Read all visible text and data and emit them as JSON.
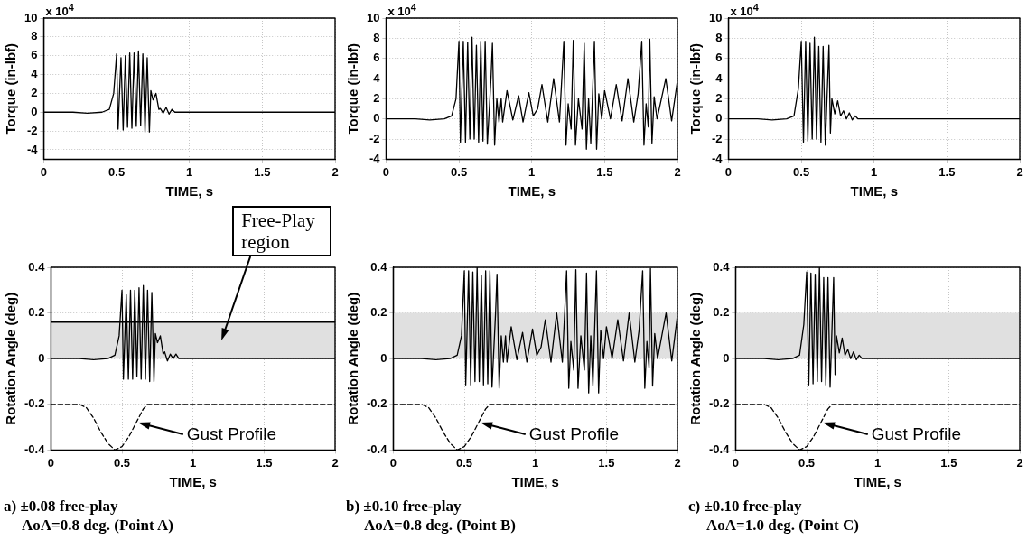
{
  "chart_data": [
    {
      "type": "line",
      "xlabel": "TIME, s",
      "ylabel": "Torque (in-lbf)",
      "xlim": [
        0,
        2
      ],
      "xticks": [
        0,
        0.5,
        1,
        1.5,
        2
      ],
      "ylim": [
        -5,
        10
      ],
      "yticks": [
        -4,
        -2,
        0,
        2,
        4,
        6,
        8,
        10
      ],
      "grid": true,
      "annotations": [
        "x 10$^{4}$"
      ],
      "series": [
        {
          "color": "#000000",
          "x": [
            0,
            0.2,
            0.3,
            0.4,
            0.45,
            0.48,
            0.5,
            0.51,
            0.53,
            0.545,
            0.56,
            0.575,
            0.59,
            0.605,
            0.62,
            0.635,
            0.65,
            0.665,
            0.68,
            0.695,
            0.71,
            0.725,
            0.735,
            0.75,
            0.77,
            0.79,
            0.8,
            0.82,
            0.84,
            0.86,
            0.88,
            0.9,
            0.95,
            1.0,
            2.0
          ],
          "values": [
            0,
            0,
            -0.1,
            0,
            0.3,
            2,
            6.2,
            -1.8,
            5.8,
            -1.9,
            6.0,
            -1.6,
            6.3,
            -1.7,
            6.3,
            -1.5,
            6.5,
            -1.4,
            6.2,
            -2.1,
            5.8,
            -2.1,
            2.3,
            1.3,
            2.0,
            0.3,
            0.4,
            -0.1,
            0.5,
            -0.2,
            0.3,
            0,
            0,
            0,
            0
          ]
        }
      ]
    },
    {
      "type": "line",
      "xlabel": "TIME, s",
      "ylabel": "Torque (in-lbf)",
      "xlim": [
        0,
        2
      ],
      "xticks": [
        0,
        0.5,
        1,
        1.5,
        2
      ],
      "ylim": [
        -4,
        10
      ],
      "yticks": [
        -4,
        -2,
        0,
        2,
        4,
        6,
        8,
        10
      ],
      "grid": true,
      "annotations": [
        "x 10$^{4}$"
      ],
      "series": [
        {
          "color": "#000000",
          "x": [
            0,
            0.2,
            0.3,
            0.4,
            0.45,
            0.48,
            0.5,
            0.51,
            0.53,
            0.545,
            0.56,
            0.575,
            0.59,
            0.605,
            0.62,
            0.635,
            0.65,
            0.665,
            0.68,
            0.695,
            0.72,
            0.73,
            0.745,
            0.76,
            0.775,
            0.79,
            0.8,
            0.83,
            0.87,
            0.91,
            0.94,
            0.98,
            1.01,
            1.04,
            1.07,
            1.11,
            1.15,
            1.19,
            1.22,
            1.235,
            1.25,
            1.27,
            1.285,
            1.3,
            1.32,
            1.345,
            1.36,
            1.375,
            1.39,
            1.405,
            1.43,
            1.445,
            1.46,
            1.48,
            1.5,
            1.54,
            1.58,
            1.62,
            1.66,
            1.7,
            1.73,
            1.755,
            1.77,
            1.785,
            1.8,
            1.81,
            1.825,
            1.84,
            1.86,
            1.92,
            1.96,
            2.0
          ],
          "values": [
            0,
            0,
            -0.1,
            0,
            0.3,
            2,
            7.7,
            -2.3,
            7.7,
            -2.3,
            7.6,
            -2.0,
            8.1,
            -2.0,
            7.3,
            -2.3,
            7.7,
            -2.2,
            7.7,
            -2.5,
            4.0,
            7.5,
            -2.6,
            2.0,
            -0.3,
            2.0,
            -0.3,
            2.8,
            -0.1,
            2.3,
            -0.3,
            2.6,
            0.3,
            1.0,
            3.4,
            -0.3,
            4.0,
            -0.3,
            7.7,
            -2.6,
            1.5,
            -1.0,
            7.8,
            -2.6,
            2.0,
            -1.0,
            7.5,
            -3.0,
            2.0,
            -2.4,
            7.7,
            -3.0,
            2.5,
            0,
            2.8,
            0,
            3.4,
            -0.2,
            4.0,
            -0.3,
            2.5,
            7.7,
            -2.6,
            1.5,
            -0.8,
            7.9,
            -2.4,
            2.2,
            0,
            4.0,
            -0.2,
            3.8
          ]
        }
      ]
    },
    {
      "type": "line",
      "xlabel": "TIME, s",
      "ylabel": "Torque (in-lbf)",
      "xlim": [
        0,
        2
      ],
      "xticks": [
        0,
        0.5,
        1,
        1.5,
        2
      ],
      "ylim": [
        -4,
        10
      ],
      "yticks": [
        -4,
        -2,
        0,
        2,
        4,
        6,
        8,
        10
      ],
      "grid": true,
      "annotations": [
        "x 10$^{4}$"
      ],
      "series": [
        {
          "color": "#000000",
          "x": [
            0,
            0.2,
            0.3,
            0.4,
            0.45,
            0.48,
            0.5,
            0.515,
            0.53,
            0.545,
            0.56,
            0.575,
            0.59,
            0.605,
            0.62,
            0.635,
            0.65,
            0.665,
            0.69,
            0.7,
            0.71,
            0.73,
            0.75,
            0.77,
            0.79,
            0.81,
            0.83,
            0.85,
            0.87,
            0.89,
            0.92,
            0.95,
            2.0
          ],
          "values": [
            0,
            0,
            -0.1,
            0,
            0.3,
            3,
            7.7,
            -2.3,
            7.7,
            -2.2,
            7.5,
            -2.0,
            8.1,
            -2.0,
            7.2,
            -2.3,
            7.2,
            -2.6,
            7.3,
            -1.4,
            2.0,
            0.5,
            1.8,
            0.3,
            0.8,
            0,
            0.6,
            -0.1,
            0.3,
            0,
            0,
            0,
            0
          ]
        }
      ]
    },
    {
      "type": "line",
      "xlabel": "TIME, s",
      "ylabel": "Rotation Angle (deg)",
      "xlim": [
        0,
        2
      ],
      "xticks": [
        0,
        0.5,
        1,
        1.5,
        2
      ],
      "ylim": [
        -0.4,
        0.4
      ],
      "yticks": [
        -0.4,
        -0.2,
        0,
        0.2,
        0.4
      ],
      "grid": true,
      "bands": [
        {
          "axis": "y",
          "from": 0,
          "to": 0.16,
          "color": "#e0e0e0",
          "label": "Free-Play region"
        }
      ],
      "ref_lines": [
        {
          "axis": "y",
          "value": 0.16
        }
      ],
      "annotations": [
        "a) ±0.08 free-play",
        "AoA=0.8 deg. (Point A)"
      ],
      "series": [
        {
          "color": "#000000",
          "x": [
            0,
            0.2,
            0.3,
            0.4,
            0.45,
            0.48,
            0.5,
            0.51,
            0.53,
            0.545,
            0.56,
            0.575,
            0.59,
            0.605,
            0.62,
            0.635,
            0.65,
            0.665,
            0.68,
            0.695,
            0.71,
            0.725,
            0.735,
            0.75,
            0.77,
            0.79,
            0.8,
            0.82,
            0.84,
            0.86,
            0.88,
            0.9,
            0.95,
            1.0,
            2.0
          ],
          "values": [
            0,
            0,
            -0.005,
            0,
            0.015,
            0.1,
            0.3,
            -0.09,
            0.28,
            -0.09,
            0.3,
            -0.09,
            0.3,
            -0.08,
            0.31,
            -0.09,
            0.32,
            -0.09,
            0.3,
            -0.1,
            0.29,
            -0.1,
            0.11,
            0.07,
            0.1,
            0.02,
            0.03,
            -0.01,
            0.02,
            0,
            0.02,
            0,
            0,
            0,
            0
          ]
        },
        {
          "name": "Gust Profile",
          "color": "#000000",
          "line_style": "dashed",
          "x": [
            0,
            0.2,
            0.25,
            0.3,
            0.35,
            0.4,
            0.45,
            0.5,
            0.55,
            0.6,
            0.65,
            0.68,
            2
          ],
          "values": [
            -0.2,
            -0.2,
            -0.215,
            -0.26,
            -0.32,
            -0.37,
            -0.4,
            -0.385,
            -0.34,
            -0.28,
            -0.22,
            -0.2,
            -0.2
          ]
        }
      ]
    },
    {
      "type": "line",
      "xlabel": "TIME, s",
      "ylabel": "Rotation Angle (deg)",
      "xlim": [
        0,
        2
      ],
      "xticks": [
        0,
        0.5,
        1,
        1.5,
        2
      ],
      "ylim": [
        -0.4,
        0.4
      ],
      "yticks": [
        -0.4,
        -0.2,
        0,
        0.2,
        0.4
      ],
      "grid": true,
      "bands": [
        {
          "axis": "y",
          "from": 0,
          "to": 0.2,
          "color": "#e0e0e0"
        }
      ],
      "annotations": [
        "b) ±0.10 free-play",
        "AoA=0.8 deg. (Point B)"
      ],
      "series": [
        {
          "color": "#000000",
          "x": [
            0,
            0.2,
            0.3,
            0.4,
            0.45,
            0.48,
            0.5,
            0.51,
            0.53,
            0.545,
            0.56,
            0.575,
            0.59,
            0.605,
            0.62,
            0.635,
            0.65,
            0.665,
            0.68,
            0.695,
            0.72,
            0.73,
            0.745,
            0.76,
            0.775,
            0.79,
            0.8,
            0.83,
            0.87,
            0.91,
            0.94,
            0.98,
            1.01,
            1.04,
            1.07,
            1.11,
            1.15,
            1.19,
            1.22,
            1.235,
            1.25,
            1.27,
            1.285,
            1.3,
            1.32,
            1.345,
            1.36,
            1.375,
            1.39,
            1.405,
            1.43,
            1.445,
            1.46,
            1.48,
            1.5,
            1.54,
            1.58,
            1.62,
            1.66,
            1.7,
            1.73,
            1.755,
            1.77,
            1.785,
            1.8,
            1.81,
            1.825,
            1.84,
            1.86,
            1.92,
            1.96,
            2.0
          ],
          "values": [
            0,
            0,
            -0.005,
            0,
            0.015,
            0.1,
            0.385,
            -0.115,
            0.385,
            -0.115,
            0.38,
            -0.1,
            0.4,
            -0.1,
            0.365,
            -0.115,
            0.385,
            -0.11,
            0.385,
            -0.125,
            0.2,
            0.37,
            -0.13,
            0.1,
            -0.015,
            0.1,
            -0.015,
            0.14,
            -0.005,
            0.115,
            -0.015,
            0.13,
            0.015,
            0.05,
            0.17,
            -0.015,
            0.2,
            -0.015,
            0.385,
            -0.13,
            0.075,
            -0.05,
            0.39,
            -0.13,
            0.1,
            -0.05,
            0.375,
            -0.15,
            0.1,
            -0.12,
            0.385,
            -0.15,
            0.125,
            0,
            0.14,
            0,
            0.17,
            -0.01,
            0.2,
            -0.015,
            0.125,
            0.385,
            -0.13,
            0.075,
            -0.04,
            0.395,
            -0.12,
            0.11,
            0,
            0.2,
            -0.01,
            0.19
          ]
        },
        {
          "name": "Gust Profile",
          "color": "#000000",
          "line_style": "dashed",
          "x": [
            0,
            0.2,
            0.25,
            0.3,
            0.35,
            0.4,
            0.45,
            0.5,
            0.55,
            0.6,
            0.65,
            0.68,
            2
          ],
          "values": [
            -0.2,
            -0.2,
            -0.215,
            -0.26,
            -0.32,
            -0.37,
            -0.4,
            -0.385,
            -0.34,
            -0.28,
            -0.22,
            -0.2,
            -0.2
          ]
        }
      ]
    },
    {
      "type": "line",
      "xlabel": "TIME, s",
      "ylabel": "Rotation Angle (deg)",
      "xlim": [
        0,
        2
      ],
      "xticks": [
        0,
        0.5,
        1,
        1.5,
        2
      ],
      "ylim": [
        -0.4,
        0.4
      ],
      "yticks": [
        -0.4,
        -0.2,
        0,
        0.2,
        0.4
      ],
      "grid": true,
      "bands": [
        {
          "axis": "y",
          "from": 0,
          "to": 0.2,
          "color": "#e0e0e0"
        }
      ],
      "annotations": [
        "c) ±0.10 free-play",
        "AoA=1.0 deg. (Point C)"
      ],
      "series": [
        {
          "color": "#000000",
          "x": [
            0,
            0.2,
            0.3,
            0.4,
            0.45,
            0.48,
            0.5,
            0.515,
            0.53,
            0.545,
            0.56,
            0.575,
            0.59,
            0.605,
            0.62,
            0.635,
            0.65,
            0.665,
            0.69,
            0.7,
            0.71,
            0.73,
            0.75,
            0.77,
            0.79,
            0.81,
            0.83,
            0.85,
            0.87,
            0.89,
            0.92,
            0.95,
            2.0
          ],
          "values": [
            0,
            0,
            -0.005,
            0,
            0.015,
            0.15,
            0.38,
            -0.115,
            0.375,
            -0.11,
            0.37,
            -0.1,
            0.4,
            -0.1,
            0.355,
            -0.115,
            0.355,
            -0.125,
            0.355,
            -0.07,
            0.1,
            0.025,
            0.09,
            0.015,
            0.04,
            0,
            0.03,
            -0.005,
            0.015,
            0,
            0,
            0,
            0
          ]
        },
        {
          "name": "Gust Profile",
          "color": "#000000",
          "line_style": "dashed",
          "x": [
            0,
            0.2,
            0.25,
            0.3,
            0.35,
            0.4,
            0.45,
            0.5,
            0.55,
            0.6,
            0.65,
            0.68,
            2
          ],
          "values": [
            -0.2,
            -0.2,
            -0.215,
            -0.26,
            -0.32,
            -0.37,
            -0.4,
            -0.385,
            -0.34,
            -0.28,
            -0.22,
            -0.2,
            -0.2
          ]
        }
      ]
    }
  ]
}
